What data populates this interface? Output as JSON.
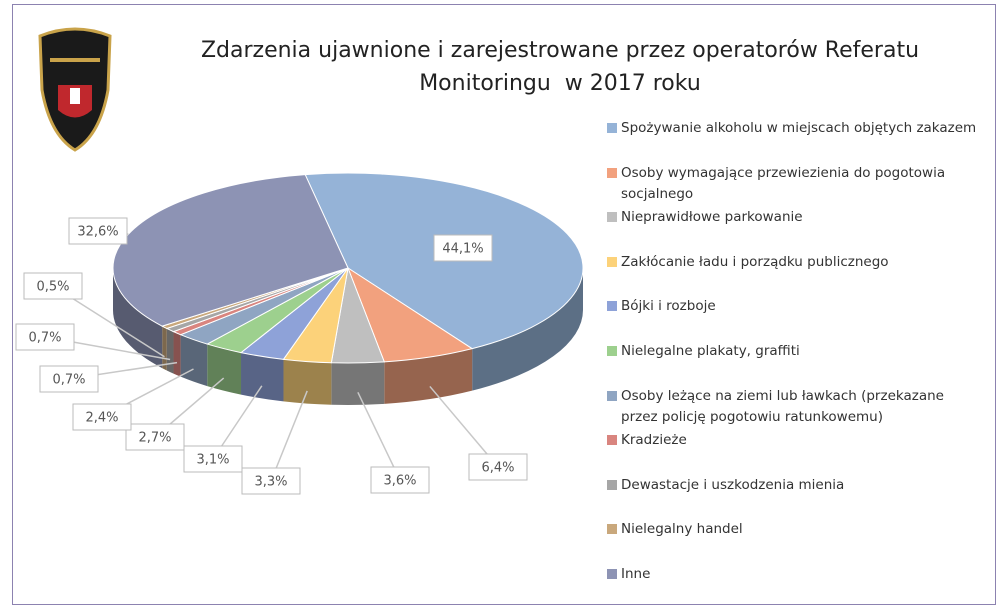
{
  "chart_data": {
    "type": "pie3d",
    "title": "Zdarzenia ujawnione i zarejestrowane przez operatorów Referatu Monitoringu  w 2017 roku",
    "categories": [
      "Spożywanie alkoholu w miejscach objętych zakazem",
      "Osoby wymagające przewiezienia do pogotowia socjalnego",
      "Nieprawidłowe parkowanie",
      "Zakłócanie ładu i porządku publicznego",
      "Bójki i rozboje",
      "Nielegalne plakaty, graffiti",
      "Osoby leżące na ziemi lub ławkach (przekazane przez policję pogotowiu ratunkowemu)",
      "Kradzieże",
      "Dewastacje i uszkodzenia mienia",
      "Nielegalny handel",
      "Inne"
    ],
    "values": [
      44.1,
      6.4,
      3.6,
      3.3,
      3.1,
      2.7,
      2.4,
      0.7,
      0.7,
      0.5,
      32.6
    ],
    "value_labels": [
      "44,1%",
      "6,4%",
      "3,6%",
      "3,3%",
      "3,1%",
      "2,7%",
      "2,4%",
      "0,7%",
      "0,7%",
      "0,5%",
      "32,6%"
    ],
    "colors": [
      "#95b3d7",
      "#f2a17e",
      "#bfbfbf",
      "#fcd27a",
      "#8ea2d8",
      "#9dd08e",
      "#8fa5c2",
      "#d9857f",
      "#a6a6a6",
      "#c9a87c",
      "#8d93b4"
    ],
    "legend": "right"
  }
}
